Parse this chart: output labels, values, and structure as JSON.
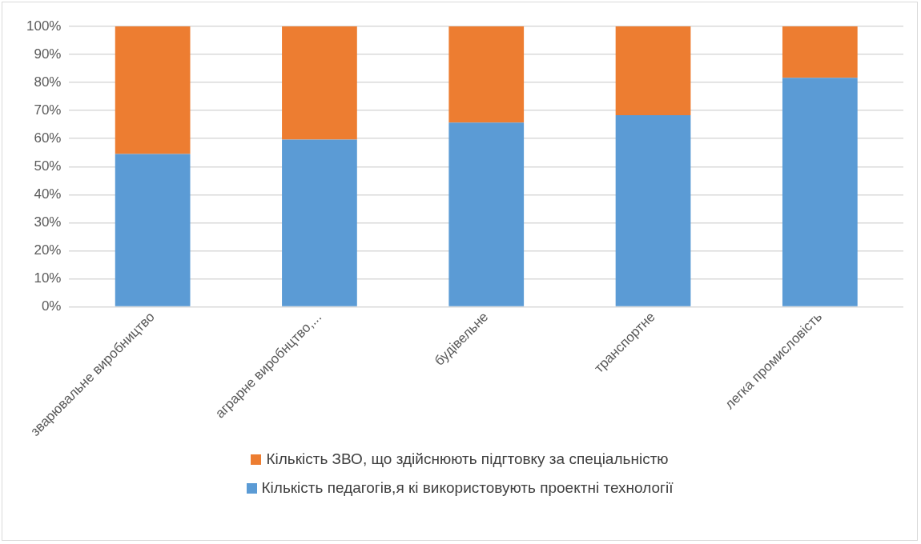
{
  "chart_data": {
    "type": "bar",
    "stacked": true,
    "categories": [
      "зварювальне виробництво",
      "аграрне виробнцтво,...",
      "будівельне",
      "транспортне",
      "легка промисловість"
    ],
    "series": [
      {
        "name": "Кількість педагогів,я кі використовують проектні технології",
        "color": "#5b9bd5",
        "values": [
          54.5,
          59.6,
          65.7,
          68.3,
          81.7
        ]
      },
      {
        "name": "Кількість ЗВО, що здійснюють підгтовку за спеціальністю",
        "color": "#ed7d31",
        "values": [
          45.5,
          40.4,
          34.3,
          31.7,
          18.3
        ]
      }
    ],
    "ylim": [
      0,
      100
    ],
    "yticks": [
      {
        "value": 0,
        "label": "0%"
      },
      {
        "value": 10,
        "label": "10%"
      },
      {
        "value": 20,
        "label": "20%"
      },
      {
        "value": 30,
        "label": "30%"
      },
      {
        "value": 40,
        "label": "40%"
      },
      {
        "value": 50,
        "label": "50%"
      },
      {
        "value": 60,
        "label": "60%"
      },
      {
        "value": 70,
        "label": "70%"
      },
      {
        "value": 80,
        "label": "80%"
      },
      {
        "value": 90,
        "label": "90%"
      },
      {
        "value": 100,
        "label": "100%"
      }
    ],
    "grid": "y",
    "legend": "bottom"
  }
}
